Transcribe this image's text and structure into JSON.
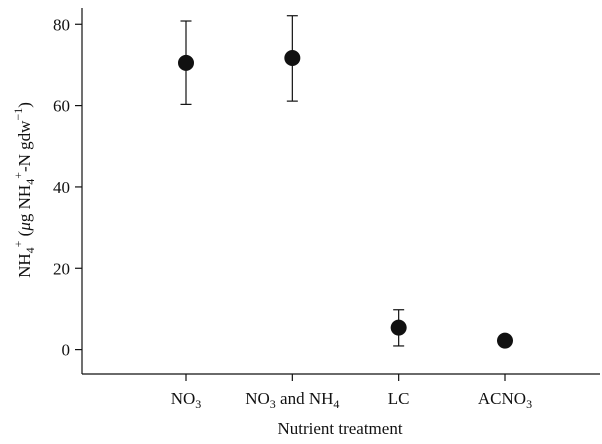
{
  "chart_data": {
    "type": "scatter",
    "categories": [
      "NO3",
      "NO3 and NH4",
      "LC",
      "ACNO3"
    ],
    "category_labels": [
      {
        "parts": [
          {
            "t": "NO"
          },
          {
            "t": "3",
            "sub": true
          }
        ]
      },
      {
        "parts": [
          {
            "t": "NO"
          },
          {
            "t": "3",
            "sub": true
          },
          {
            "t": " and NH"
          },
          {
            "t": "4",
            "sub": true
          }
        ]
      },
      {
        "parts": [
          {
            "t": "LC"
          }
        ]
      },
      {
        "parts": [
          {
            "t": "ACNO"
          },
          {
            "t": "3",
            "sub": true
          }
        ]
      }
    ],
    "series": [
      {
        "values": [
          70.5,
          71.7,
          5.4,
          2.2
        ],
        "error_low": [
          60.3,
          61.1,
          0.9,
          1.6
        ],
        "error_high": [
          80.8,
          82.1,
          9.8,
          2.8
        ]
      }
    ],
    "xlabel": "Nutrient treatment",
    "ylabel": "NH4+ (μg NH4+-N gdw−1)",
    "ylim": [
      -6,
      84
    ],
    "yticks": [
      0,
      20,
      40,
      60,
      80
    ],
    "grid": false,
    "marker_color": "#111111"
  }
}
